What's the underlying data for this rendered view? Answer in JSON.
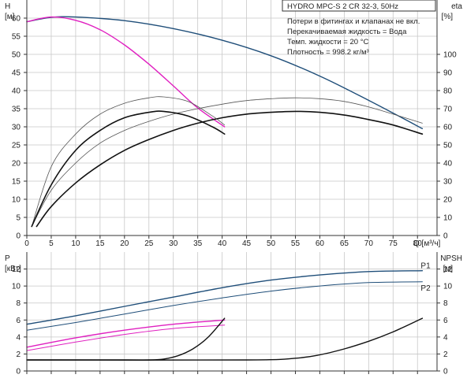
{
  "chart_data": [
    {
      "type": "line",
      "title": "HYDRO MPC-S 2 CR 32-3, 50Hz",
      "info_lines": [
        "Потери в фитингах и клапанах не вкл.",
        "Перекачиваемая жидкость = Вода",
        "Темп. жидкости = 20 °C",
        "Плотность = 998.2 кг/м³"
      ],
      "xlabel": "Q [м³/ч]",
      "xlim": [
        0,
        84
      ],
      "xticks": [
        0,
        5,
        10,
        15,
        20,
        25,
        30,
        35,
        40,
        45,
        50,
        55,
        60,
        65,
        70,
        75,
        80
      ],
      "ylabel_left": "H",
      "ylabel_left_unit": "[м]",
      "ylim_left": [
        0,
        65
      ],
      "yticks_left": [
        0,
        5,
        10,
        15,
        20,
        25,
        30,
        35,
        40,
        45,
        50,
        55,
        60
      ],
      "ylabel_right": "eta",
      "ylabel_right_unit": "[%]",
      "ylim_right": [
        0,
        130
      ],
      "yticks_right": [
        0,
        10,
        20,
        30,
        40,
        50,
        60,
        70,
        80,
        90,
        100
      ],
      "grid": true,
      "series": [
        {
          "axis": "left",
          "color": "#1f4e79",
          "width": 1.4,
          "x": [
            0,
            5,
            10,
            20,
            30,
            40,
            50,
            60,
            70,
            81
          ],
          "y": [
            59,
            60.2,
            60.3,
            59.3,
            57.1,
            53.9,
            49.6,
            44,
            37.3,
            29.5
          ]
        },
        {
          "axis": "left",
          "color": "#e020c0",
          "width": 1.4,
          "x": [
            0,
            5,
            10,
            15,
            20,
            25,
            30,
            35,
            40.5
          ],
          "y": [
            59,
            60.3,
            59.4,
            56.8,
            52.6,
            47.3,
            41.3,
            35.2,
            30
          ]
        },
        {
          "axis": "right",
          "color": "#555555",
          "width": 0.8,
          "x": [
            1,
            5,
            10,
            15,
            20,
            25,
            30,
            35,
            40,
            45,
            50,
            55,
            60,
            65,
            70,
            75,
            81
          ],
          "y": [
            5,
            25,
            40,
            51,
            58,
            63,
            67,
            70,
            72.5,
            74.5,
            75.5,
            76,
            75.5,
            74,
            71,
            67,
            62
          ]
        },
        {
          "axis": "right",
          "color": "#111111",
          "width": 1.6,
          "x": [
            2,
            5,
            10,
            15,
            20,
            25,
            30,
            35,
            40,
            45,
            50,
            55,
            60,
            65,
            70,
            75,
            81
          ],
          "y": [
            5,
            16,
            29,
            39,
            47,
            53,
            58,
            62,
            65,
            67,
            68,
            68.5,
            68,
            66.5,
            64,
            61,
            56
          ]
        },
        {
          "axis": "right",
          "color": "#555555",
          "width": 0.8,
          "x": [
            1,
            5,
            10,
            15,
            20,
            25,
            28,
            33,
            38,
            40.5
          ],
          "y": [
            5,
            38,
            56,
            67,
            73,
            76,
            76.5,
            74,
            66,
            61
          ]
        },
        {
          "axis": "right",
          "color": "#111111",
          "width": 1.6,
          "x": [
            1,
            5,
            10,
            15,
            20,
            25,
            28,
            33,
            38,
            40.5
          ],
          "y": [
            5,
            28,
            47,
            58,
            65,
            68,
            68.5,
            66,
            60,
            56
          ]
        }
      ]
    },
    {
      "type": "line",
      "xlim": [
        0,
        84
      ],
      "xticks": [
        0,
        5,
        10,
        15,
        20,
        25,
        30,
        35,
        40,
        45,
        50,
        55,
        60,
        65,
        70,
        75,
        80
      ],
      "ylabel_left": "P",
      "ylabel_left_unit": "[кВт]",
      "ylim_left": [
        0,
        14
      ],
      "yticks_left": [
        0,
        2,
        4,
        6,
        8,
        10,
        12
      ],
      "ylabel_right": "NPSH",
      "ylabel_right_unit": "[м]",
      "ylim_right": [
        0,
        14
      ],
      "yticks_right": [
        0,
        2,
        4,
        6,
        8,
        10,
        12
      ],
      "grid": true,
      "series": [
        {
          "name": "P1",
          "axis": "left",
          "color": "#1f4e79",
          "width": 1.4,
          "x": [
            0,
            10,
            20,
            30,
            40,
            50,
            60,
            70,
            81
          ],
          "y": [
            5.5,
            6.5,
            7.6,
            8.7,
            9.8,
            10.7,
            11.3,
            11.7,
            11.8
          ]
        },
        {
          "name": "P2",
          "axis": "left",
          "color": "#1f4e79",
          "width": 1.0,
          "x": [
            0,
            10,
            20,
            30,
            40,
            50,
            60,
            70,
            81
          ],
          "y": [
            4.8,
            5.7,
            6.7,
            7.7,
            8.6,
            9.4,
            10,
            10.4,
            10.5
          ]
        },
        {
          "axis": "left",
          "color": "#e020c0",
          "width": 1.4,
          "x": [
            0,
            10,
            20,
            30,
            40.5
          ],
          "y": [
            2.8,
            3.9,
            4.8,
            5.5,
            6
          ]
        },
        {
          "axis": "left",
          "color": "#e020c0",
          "width": 1.0,
          "x": [
            0,
            10,
            20,
            30,
            40.5
          ],
          "y": [
            2.4,
            3.4,
            4.3,
            5,
            5.4
          ]
        },
        {
          "axis": "right",
          "color": "#111111",
          "width": 1.4,
          "x": [
            0,
            20,
            25,
            28,
            31,
            34,
            37,
            40.5
          ],
          "y": [
            1.3,
            1.3,
            1.3,
            1.4,
            1.8,
            2.6,
            3.9,
            6.2
          ]
        },
        {
          "axis": "right",
          "color": "#111111",
          "width": 1.4,
          "x": [
            0,
            45,
            55,
            60,
            65,
            70,
            75,
            81
          ],
          "y": [
            1.3,
            1.3,
            1.5,
            1.9,
            2.6,
            3.5,
            4.6,
            6.2
          ]
        }
      ]
    }
  ]
}
